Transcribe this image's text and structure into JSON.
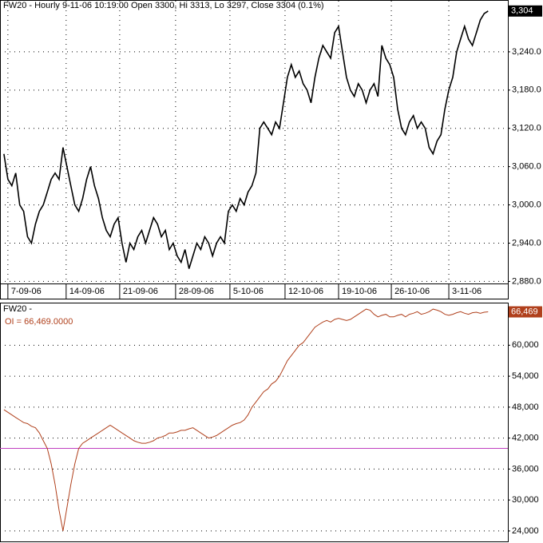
{
  "chart_data": [
    {
      "type": "line",
      "title": "FW20 - Hourly 9-11-06 10:19:00 Open 3300, Hi 3313, Lo 3297, Close 3304 (0.1%)",
      "series": [
        {
          "color": "#000000",
          "values": [
            3080,
            3040,
            3030,
            3050,
            3000,
            2990,
            2950,
            2940,
            2970,
            2990,
            3000,
            3020,
            3040,
            3050,
            3040,
            3090,
            3060,
            3030,
            3000,
            2990,
            3010,
            3040,
            3060,
            3030,
            3010,
            2980,
            2960,
            2950,
            2970,
            2980,
            2940,
            2910,
            2940,
            2930,
            2950,
            2960,
            2940,
            2960,
            2980,
            2970,
            2950,
            2960,
            2930,
            2940,
            2920,
            2910,
            2930,
            2900,
            2920,
            2940,
            2930,
            2950,
            2940,
            2920,
            2940,
            2950,
            2940,
            2990,
            3000,
            2990,
            3010,
            3000,
            3020,
            3030,
            3050,
            3120,
            3130,
            3120,
            3110,
            3130,
            3120,
            3160,
            3200,
            3220,
            3200,
            3210,
            3190,
            3180,
            3160,
            3200,
            3230,
            3250,
            3240,
            3230,
            3270,
            3280,
            3240,
            3200,
            3180,
            3170,
            3190,
            3180,
            3160,
            3180,
            3190,
            3170,
            3250,
            3230,
            3220,
            3200,
            3150,
            3120,
            3110,
            3130,
            3140,
            3120,
            3130,
            3120,
            3090,
            3080,
            3100,
            3110,
            3150,
            3180,
            3200,
            3240,
            3260,
            3280,
            3260,
            3250,
            3270,
            3290,
            3300,
            3304
          ]
        }
      ],
      "last_label": {
        "value": 3304,
        "label": "3,304"
      },
      "last_label_color": "#000000",
      "xlim": [
        -1,
        128
      ],
      "xticks": [
        {
          "value": 1,
          "label": "7-09-06"
        },
        {
          "value": 15.8,
          "label": "14-09-06"
        },
        {
          "value": 29.4,
          "label": "21-09-06"
        },
        {
          "value": 43.6,
          "label": "28-09-06"
        },
        {
          "value": 57.4,
          "label": "5-10-06"
        },
        {
          "value": 71.4,
          "label": "12-10-06"
        },
        {
          "value": 85,
          "label": "19-10-06"
        },
        {
          "value": 98.4,
          "label": "26-10-06"
        },
        {
          "value": 113,
          "label": "3-11-06"
        }
      ],
      "ylim": [
        2853,
        3320
      ],
      "yticks": [
        {
          "value": 2880,
          "label": "2,880.0"
        },
        {
          "value": 2940,
          "label": "2,940.0"
        },
        {
          "value": 3000,
          "label": "3,000.0"
        },
        {
          "value": 3060,
          "label": "3,060.0"
        },
        {
          "value": 3120,
          "label": "3,120.0"
        },
        {
          "value": 3180,
          "label": "3,180.0"
        },
        {
          "value": 3240,
          "label": "3,240.0"
        }
      ],
      "grid": true
    },
    {
      "type": "line",
      "title": "FW20 -",
      "series": [
        {
          "name": "OI = 66,469.0000",
          "color": "#b0401c",
          "values": [
            47500,
            47000,
            46500,
            46000,
            45500,
            45000,
            44800,
            44300,
            44000,
            43000,
            41500,
            40000,
            37000,
            33000,
            28000,
            24000,
            28500,
            33000,
            37000,
            40000,
            41000,
            41500,
            42000,
            42500,
            43000,
            43500,
            44000,
            44500,
            44000,
            43500,
            43000,
            42500,
            42000,
            41500,
            41200,
            41000,
            41000,
            41200,
            41500,
            42000,
            42200,
            42500,
            43000,
            43000,
            43200,
            43500,
            43500,
            43800,
            44000,
            43500,
            43000,
            42500,
            42000,
            42200,
            42500,
            43000,
            43500,
            44000,
            44500,
            44800,
            45000,
            45500,
            46500,
            48000,
            49000,
            50000,
            51000,
            51500,
            52500,
            53000,
            54000,
            55500,
            57000,
            58000,
            59000,
            60000,
            60500,
            61500,
            62500,
            63500,
            64000,
            64500,
            64800,
            64500,
            65000,
            65200,
            65000,
            64800,
            65000,
            65500,
            66000,
            66500,
            67000,
            66800,
            66000,
            65500,
            65800,
            66000,
            65500,
            65500,
            65800,
            66000,
            65500,
            66000,
            66200,
            66500,
            66000,
            66200,
            66500,
            67000,
            66800,
            66500,
            66000,
            65800,
            66000,
            66300,
            66500,
            66200,
            66000,
            66300,
            66400,
            66200,
            66400,
            66469
          ]
        }
      ],
      "last_label": {
        "value": 66469,
        "label": "66,469"
      },
      "last_label_color": "#b0401c",
      "hline": 40000,
      "hline_color": "#c040c0",
      "xlim": [
        -1,
        128
      ],
      "ylim": [
        21975,
        68100
      ],
      "yticks": [
        {
          "value": 24000,
          "label": "24,000"
        },
        {
          "value": 30000,
          "label": "30,000"
        },
        {
          "value": 36000,
          "label": "36,000"
        },
        {
          "value": 42000,
          "label": "42,000"
        },
        {
          "value": 48000,
          "label": "48,000"
        },
        {
          "value": 54000,
          "label": "54,000"
        },
        {
          "value": 60000,
          "label": "60,000"
        }
      ],
      "grid": true
    }
  ]
}
